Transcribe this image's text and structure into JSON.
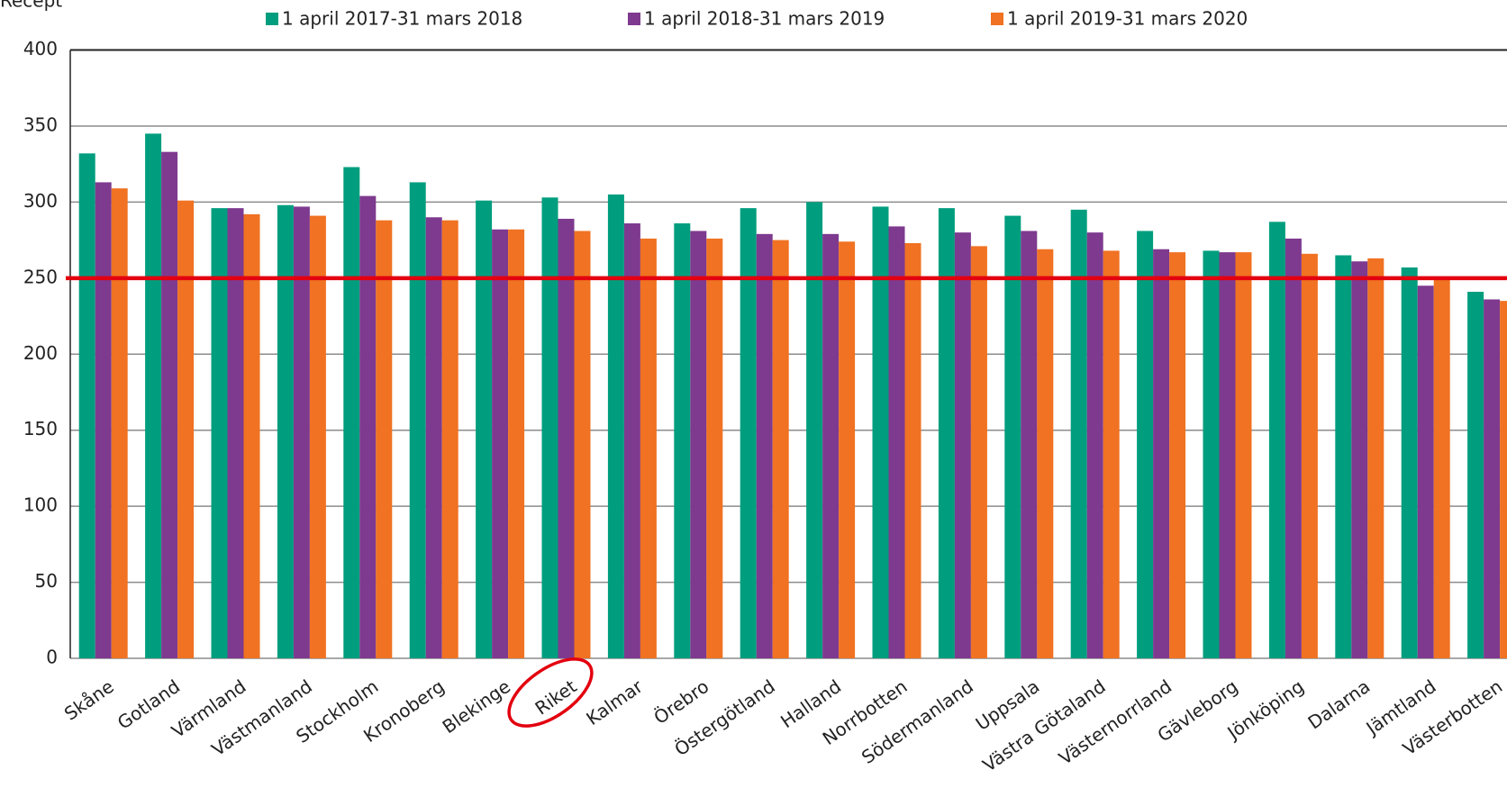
{
  "chart_data": {
    "type": "bar",
    "y_label": "Recept",
    "categories": [
      "Skåne",
      "Gotland",
      "Värmland",
      "Västmanland",
      "Stockholm",
      "Kronoberg",
      "Blekinge",
      "Riket",
      "Kalmar",
      "Örebro",
      "Östergötland",
      "Halland",
      "Norrbotten",
      "Södermanland",
      "Uppsala",
      "Västra Götaland",
      "Västernorrland",
      "Gävleborg",
      "Jönköping",
      "Dalarna",
      "Jämtland",
      "Västerbotten"
    ],
    "series": [
      {
        "name": "1 april 2017-31 mars 2018",
        "color": "#009e7e",
        "values": [
          332,
          345,
          296,
          298,
          323,
          313,
          301,
          303,
          305,
          286,
          296,
          300,
          297,
          296,
          291,
          295,
          281,
          268,
          287,
          265,
          257,
          241
        ]
      },
      {
        "name": "1 april 2018-31 mars 2019",
        "color": "#7e3a8f",
        "values": [
          313,
          333,
          296,
          297,
          304,
          290,
          282,
          289,
          286,
          281,
          279,
          279,
          284,
          280,
          281,
          280,
          269,
          267,
          276,
          261,
          245,
          236
        ]
      },
      {
        "name": "1 april 2019-31 mars 2020",
        "color": "#f07222",
        "values": [
          309,
          301,
          292,
          291,
          288,
          288,
          282,
          281,
          276,
          276,
          275,
          274,
          273,
          271,
          269,
          268,
          267,
          267,
          266,
          263,
          250,
          235
        ]
      }
    ],
    "reference_line": {
      "value": 250,
      "color": "#e3000f"
    },
    "ylim": [
      0,
      400
    ],
    "yticks": [
      0,
      50,
      100,
      150,
      200,
      250,
      300,
      350,
      400
    ],
    "grid": true
  }
}
